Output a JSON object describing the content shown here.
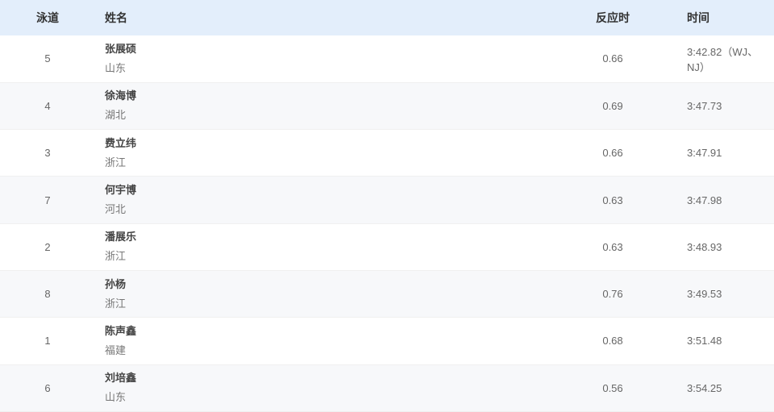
{
  "headers": {
    "lane": "泳道",
    "name": "姓名",
    "reaction": "反应时",
    "time": "时间"
  },
  "rows": [
    {
      "lane": "5",
      "name": "张展硕",
      "province": "山东",
      "reaction": "0.66",
      "time": "3:42.82（WJ、NJ）"
    },
    {
      "lane": "4",
      "name": "徐海博",
      "province": "湖北",
      "reaction": "0.69",
      "time": "3:47.73"
    },
    {
      "lane": "3",
      "name": "费立纬",
      "province": "浙江",
      "reaction": "0.66",
      "time": "3:47.91"
    },
    {
      "lane": "7",
      "name": "何宇博",
      "province": "河北",
      "reaction": "0.63",
      "time": "3:47.98"
    },
    {
      "lane": "2",
      "name": "潘展乐",
      "province": "浙江",
      "reaction": "0.63",
      "time": "3:48.93"
    },
    {
      "lane": "8",
      "name": "孙杨",
      "province": "浙江",
      "reaction": "0.76",
      "time": "3:49.53"
    },
    {
      "lane": "1",
      "name": "陈声鑫",
      "province": "福建",
      "reaction": "0.68",
      "time": "3:51.48"
    },
    {
      "lane": "6",
      "name": "刘培鑫",
      "province": "山东",
      "reaction": "0.56",
      "time": "3:54.25"
    }
  ]
}
